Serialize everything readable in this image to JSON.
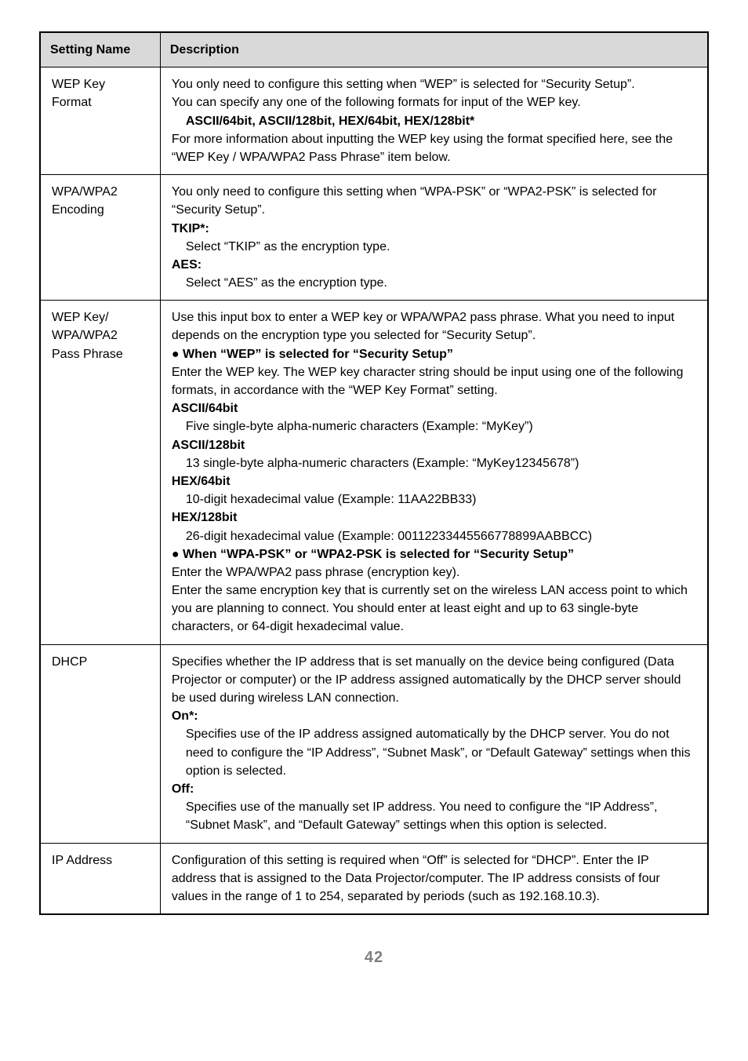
{
  "page_number": "42",
  "table": {
    "headers": {
      "name": "Setting Name",
      "desc": "Description"
    },
    "rows": [
      {
        "name_l1": "WEP Key",
        "name_l2": "Format",
        "p1": "You only need to configure this setting when “WEP” is selected for “Security Setup”.",
        "p2": "You can specify any one of the following formats for input of the WEP key.",
        "p3": "ASCII/64bit, ASCII/128bit, HEX/64bit, HEX/128bit*",
        "p4": "For more information about inputting the WEP key using the format specified here, see the “WEP Key / WPA/WPA2 Pass Phrase” item below."
      },
      {
        "name_l1": "WPA/WPA2",
        "name_l2": "Encoding",
        "p1": "You only need to configure this setting when “WPA-PSK” or “WPA2-PSK” is selected for “Security Setup”.",
        "h1": "TKIP*:",
        "p2": "Select “TKIP” as the encryption type.",
        "h2": "AES:",
        "p3": "Select “AES” as the encryption type."
      },
      {
        "name_l1": "WEP Key/",
        "name_l2": "WPA/WPA2",
        "name_l3": "Pass Phrase",
        "p1": "Use this input box to enter a WEP key or WPA/WPA2 pass phrase. What you need to input depends on the encryption type you selected for “Security Setup”.",
        "b1": "When “WEP” is selected for “Security Setup”",
        "p2": "Enter the WEP key. The WEP key character string should be input using one of the following formats, in accordance with the “WEP Key Format” setting.",
        "h1": "ASCII/64bit",
        "p3": "Five single-byte alpha-numeric characters (Example: “MyKey”)",
        "h2": "ASCII/128bit",
        "p4": "13 single-byte alpha-numeric characters (Example: “MyKey12345678”)",
        "h3": "HEX/64bit",
        "p5": "10-digit hexadecimal value (Example: 11AA22BB33)",
        "h4": "HEX/128bit",
        "p6": "26-digit hexadecimal value (Example: 00112233445566778899AABBCC)",
        "b2": "When “WPA-PSK” or “WPA2-PSK is selected for “Security Setup”",
        "p7": "Enter the WPA/WPA2 pass phrase (encryption key).",
        "p8": "Enter the same encryption key that is currently set on the wireless LAN access point to which you are planning to connect. You should enter at least eight and up to 63 single-byte characters, or 64-digit hexadecimal value."
      },
      {
        "name_l1": "DHCP",
        "p1": "Specifies whether the IP address that is set manually on the device being configured (Data Projector or computer) or the IP address assigned automatically by the DHCP server should be used during wireless LAN connection.",
        "h1": "On*:",
        "p2": "Specifies use of the IP address assigned automatically by the DHCP server. You do not need to configure the “IP Address”, “Subnet Mask”, or “Default Gateway” settings when this option is selected.",
        "h2": "Off:",
        "p3": "Specifies use of the manually set IP address. You need to configure the “IP Address”, “Subnet Mask”, and “Default Gateway” settings when this option is selected."
      },
      {
        "name_l1": "IP Address",
        "p1": "Configuration of this setting is required when “Off” is selected for “DHCP”. Enter the IP address that is assigned to the Data Projector/computer. The IP address consists of four values in the range of 1 to 254, separated by periods (such as 192.168.10.3)."
      }
    ]
  }
}
